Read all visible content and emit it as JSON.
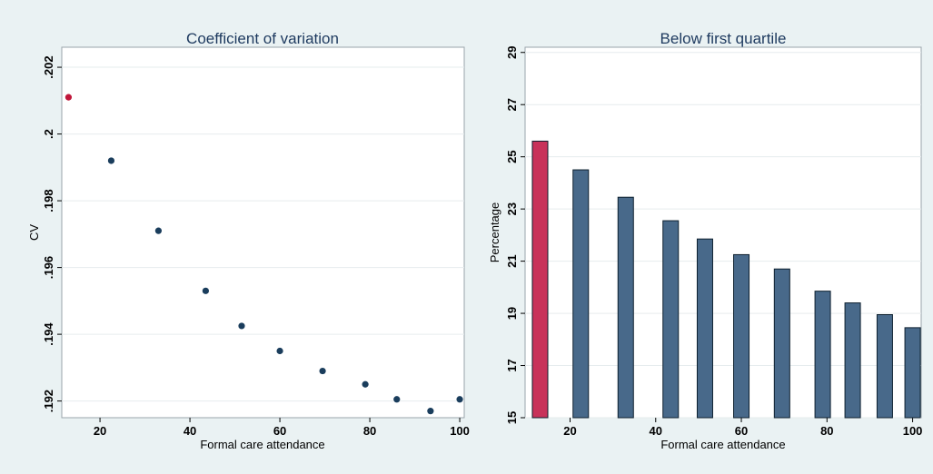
{
  "chart_data": [
    {
      "type": "scatter",
      "title": "Coefficient of variation",
      "xlabel": "Formal care attendance",
      "ylabel": "CV",
      "xlim": [
        11.5,
        101
      ],
      "ylim": [
        0.1915,
        0.2026
      ],
      "xticks": [
        "20",
        "40",
        "60",
        "80",
        "100"
      ],
      "yticks": [
        ".192",
        ".194",
        ".196",
        ".198",
        ".2",
        ".202"
      ],
      "xtick_values": [
        20,
        40,
        60,
        80,
        100
      ],
      "ytick_values": [
        0.192,
        0.194,
        0.196,
        0.198,
        0.2,
        0.202
      ],
      "grid": true,
      "legend": "none",
      "highlight_color": "#c0163a",
      "point_color": "#1a3d5c",
      "points": [
        {
          "x": 13,
          "y": 0.2011,
          "highlight": true
        },
        {
          "x": 22.5,
          "y": 0.1992
        },
        {
          "x": 33,
          "y": 0.1971
        },
        {
          "x": 43.5,
          "y": 0.1953
        },
        {
          "x": 51.5,
          "y": 0.19425
        },
        {
          "x": 60,
          "y": 0.1935
        },
        {
          "x": 69.5,
          "y": 0.1929
        },
        {
          "x": 79,
          "y": 0.1925
        },
        {
          "x": 86,
          "y": 0.19205
        },
        {
          "x": 93.5,
          "y": 0.1917
        },
        {
          "x": 100,
          "y": 0.19205
        }
      ]
    },
    {
      "type": "bar",
      "title": "Below first quartile",
      "xlabel": "Formal care attendance",
      "ylabel": "Percentage",
      "xlim": [
        9.5,
        102
      ],
      "ylim": [
        15,
        29.2
      ],
      "xticks": [
        "20",
        "40",
        "60",
        "80",
        "100"
      ],
      "yticks": [
        "15",
        "17",
        "19",
        "21",
        "23",
        "25",
        "27",
        "29"
      ],
      "xtick_values": [
        20,
        40,
        60,
        80,
        100
      ],
      "ytick_values": [
        15,
        17,
        19,
        21,
        23,
        25,
        27,
        29
      ],
      "grid": true,
      "legend": "none",
      "highlight_color": "#c8325a",
      "bar_color": "#48698a",
      "bars": [
        {
          "x": 13,
          "value": 25.6,
          "highlight": true
        },
        {
          "x": 22.5,
          "value": 24.5
        },
        {
          "x": 33,
          "value": 23.45
        },
        {
          "x": 43.5,
          "value": 22.55
        },
        {
          "x": 51.5,
          "value": 21.85
        },
        {
          "x": 60,
          "value": 21.25
        },
        {
          "x": 69.5,
          "value": 20.7
        },
        {
          "x": 79,
          "value": 19.85
        },
        {
          "x": 86,
          "value": 19.4
        },
        {
          "x": 93.5,
          "value": 18.95
        },
        {
          "x": 100,
          "value": 18.45
        }
      ]
    }
  ]
}
